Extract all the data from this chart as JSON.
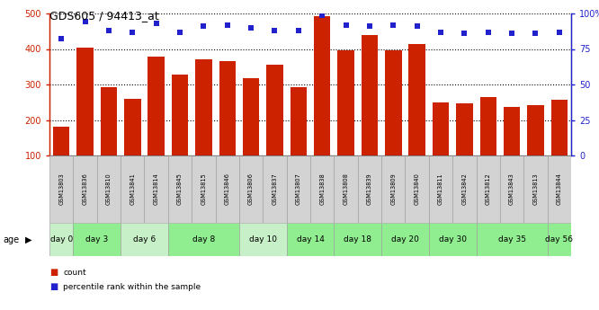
{
  "title": "GDS605 / 94413_at",
  "samples": [
    "GSM13803",
    "GSM13836",
    "GSM13810",
    "GSM13841",
    "GSM13814",
    "GSM13845",
    "GSM13815",
    "GSM13846",
    "GSM13806",
    "GSM13837",
    "GSM13807",
    "GSM13838",
    "GSM13808",
    "GSM13839",
    "GSM13809",
    "GSM13840",
    "GSM13811",
    "GSM13842",
    "GSM13812",
    "GSM13843",
    "GSM13813",
    "GSM13844"
  ],
  "counts": [
    180,
    403,
    292,
    260,
    378,
    328,
    370,
    365,
    318,
    356,
    292,
    493,
    397,
    440,
    397,
    413,
    250,
    247,
    265,
    237,
    243,
    258
  ],
  "percentiles": [
    82,
    94,
    88,
    87,
    93,
    87,
    91,
    92,
    90,
    88,
    88,
    99,
    92,
    91,
    92,
    91,
    87,
    86,
    87,
    86,
    86,
    87
  ],
  "age_groups": [
    {
      "label": "day 0",
      "indices": [
        0
      ],
      "color": "#c8f0c8"
    },
    {
      "label": "day 3",
      "indices": [
        1,
        2
      ],
      "color": "#90ee90"
    },
    {
      "label": "day 6",
      "indices": [
        3,
        4
      ],
      "color": "#c8f0c8"
    },
    {
      "label": "day 8",
      "indices": [
        5,
        6,
        7
      ],
      "color": "#90ee90"
    },
    {
      "label": "day 10",
      "indices": [
        8,
        9
      ],
      "color": "#c8f0c8"
    },
    {
      "label": "day 14",
      "indices": [
        10,
        11
      ],
      "color": "#90ee90"
    },
    {
      "label": "day 18",
      "indices": [
        12,
        13
      ],
      "color": "#90ee90"
    },
    {
      "label": "day 20",
      "indices": [
        14,
        15
      ],
      "color": "#90ee90"
    },
    {
      "label": "day 30",
      "indices": [
        16,
        17
      ],
      "color": "#90ee90"
    },
    {
      "label": "day 35",
      "indices": [
        18,
        19,
        20
      ],
      "color": "#90ee90"
    },
    {
      "label": "day 56",
      "indices": [
        21
      ],
      "color": "#90ee90"
    }
  ],
  "sample_row_color": "#d3d3d3",
  "bar_color": "#cc2200",
  "dot_color": "#2222cc",
  "left_ylim": [
    100,
    500
  ],
  "right_ylim": [
    0,
    100
  ],
  "left_yticks": [
    100,
    200,
    300,
    400,
    500
  ],
  "right_yticks": [
    0,
    25,
    50,
    75,
    100
  ],
  "bg_color": "#ffffff"
}
